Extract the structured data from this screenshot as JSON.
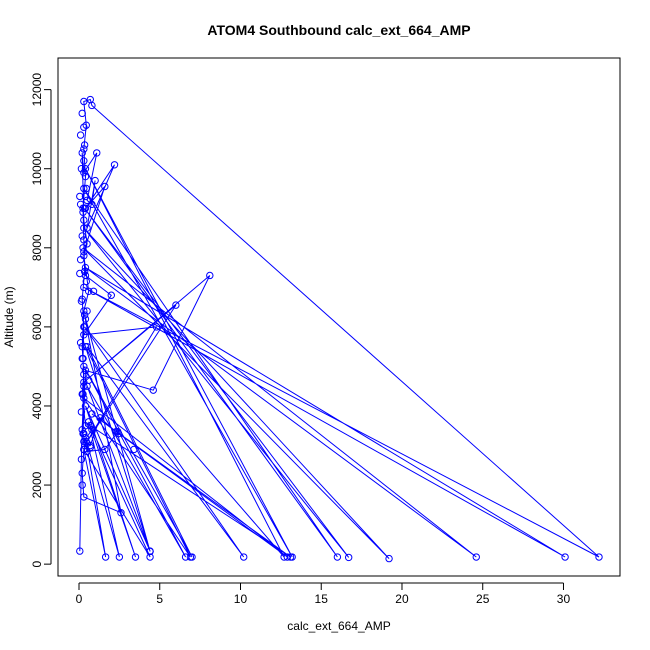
{
  "chart_data": {
    "type": "line",
    "title": "ATOM4 Southbound calc_ext_664_AMP",
    "xlabel": "calc_ext_664_AMP",
    "ylabel": "Altitude (m)",
    "xlim": [
      -1.3,
      33.5
    ],
    "ylim": [
      -300,
      12800
    ],
    "xticks": [
      0,
      5,
      10,
      15,
      20,
      25,
      30
    ],
    "yticks": [
      0,
      2000,
      4000,
      6000,
      8000,
      10000,
      12000
    ],
    "grid": false,
    "legend": "none",
    "series_color": "#0000ff",
    "marker": "open-circle",
    "series": [
      {
        "points": [
          [
            0.05,
            330
          ],
          [
            0.15,
            2650
          ],
          [
            0.2,
            3400
          ],
          [
            0.3,
            4500
          ],
          [
            0.25,
            5200
          ],
          [
            0.3,
            6000
          ],
          [
            0.2,
            6700
          ],
          [
            0.35,
            7400
          ],
          [
            0.3,
            8200
          ],
          [
            0.25,
            9000
          ],
          [
            0.4,
            9800
          ],
          [
            0.3,
            10500
          ],
          [
            0.45,
            11100
          ],
          [
            0.3,
            11700
          ],
          [
            0.7,
            11750
          ],
          [
            0.8,
            11600
          ],
          [
            32.2,
            180
          ],
          [
            0.3,
            7000
          ],
          [
            30.1,
            180
          ],
          [
            0.4,
            7500
          ],
          [
            24.6,
            180
          ],
          [
            0.25,
            8000
          ],
          [
            19.2,
            140
          ],
          [
            0.3,
            8500
          ],
          [
            16.7,
            170
          ],
          [
            0.35,
            9000
          ],
          [
            16.0,
            180
          ],
          [
            0.3,
            9500
          ],
          [
            13.2,
            180
          ],
          [
            0.4,
            10000
          ],
          [
            12.7,
            180
          ],
          [
            0.35,
            6000
          ],
          [
            10.2,
            180
          ],
          [
            0.5,
            5500
          ],
          [
            7.0,
            180
          ],
          [
            0.3,
            5000
          ],
          [
            6.6,
            180
          ],
          [
            0.5,
            4500
          ],
          [
            4.4,
            330
          ],
          [
            0.4,
            4000
          ],
          [
            3.5,
            180
          ],
          [
            0.6,
            3600
          ],
          [
            2.5,
            180
          ],
          [
            0.4,
            3200
          ],
          [
            1.65,
            180
          ],
          [
            0.3,
            2900
          ],
          [
            4.4,
            180
          ],
          [
            0.7,
            3500
          ],
          [
            13.1,
            180
          ],
          [
            0.8,
            3800
          ],
          [
            12.9,
            180
          ],
          [
            0.3,
            4200
          ],
          [
            6.9,
            180
          ],
          [
            0.4,
            5500
          ],
          [
            4.4,
            320
          ],
          [
            0.35,
            6300
          ],
          [
            2.6,
            1300
          ],
          [
            0.3,
            1700
          ],
          [
            0.2,
            2300
          ],
          [
            0.3,
            2900
          ],
          [
            0.45,
            3100
          ],
          [
            0.7,
            3000
          ],
          [
            1.3,
            3700
          ],
          [
            2.3,
            3350
          ],
          [
            2.4,
            3350
          ],
          [
            1.6,
            2900
          ],
          [
            0.5,
            2850
          ],
          [
            0.25,
            3300
          ],
          [
            0.4,
            4900
          ],
          [
            4.6,
            4400
          ],
          [
            8.1,
            7300
          ],
          [
            0.3,
            4600
          ],
          [
            6.0,
            6550
          ],
          [
            0.35,
            3000
          ],
          [
            4.8,
            6000
          ],
          [
            0.3,
            5800
          ],
          [
            2.0,
            6800
          ],
          [
            0.4,
            7300
          ],
          [
            0.3,
            7900
          ],
          [
            1.6,
            9550
          ],
          [
            0.4,
            9000
          ],
          [
            2.2,
            10100
          ],
          [
            0.5,
            8500
          ],
          [
            1.0,
            9700
          ],
          [
            0.8,
            9100
          ],
          [
            0.5,
            9200
          ],
          [
            1.1,
            10400
          ],
          [
            0.3,
            9900
          ],
          [
            0.2,
            10400
          ],
          [
            0.3,
            8700
          ],
          [
            0.5,
            8100
          ],
          [
            0.3,
            7800
          ],
          [
            0.6,
            6900
          ],
          [
            0.3,
            6400
          ],
          [
            0.2,
            5500
          ],
          [
            0.3,
            4800
          ],
          [
            0.2,
            4300
          ],
          [
            0.4,
            3500
          ],
          [
            0.8,
            3400
          ],
          [
            0.3,
            3100
          ]
        ]
      }
    ]
  },
  "extra_markers": [
    [
      0.1,
      10850
    ],
    [
      0.2,
      11400
    ],
    [
      0.3,
      11050
    ],
    [
      0.35,
      10600
    ],
    [
      0.15,
      10000
    ],
    [
      0.05,
      9300
    ],
    [
      0.1,
      9100
    ],
    [
      0.45,
      9500
    ],
    [
      0.2,
      8300
    ],
    [
      0.1,
      7700
    ],
    [
      0.05,
      7350
    ],
    [
      0.15,
      6650
    ],
    [
      0.4,
      6200
    ],
    [
      0.1,
      5600
    ],
    [
      0.25,
      4300
    ],
    [
      0.6,
      4650
    ],
    [
      0.15,
      3850
    ],
    [
      0.3,
      3300
    ],
    [
      0.7,
      2950
    ],
    [
      2.45,
      3300
    ],
    [
      3.4,
      2900
    ],
    [
      0.2,
      2000
    ],
    [
      0.5,
      3050
    ],
    [
      0.2,
      5200
    ],
    [
      0.45,
      7150
    ],
    [
      0.25,
      8900
    ],
    [
      0.4,
      9300
    ],
    [
      0.5,
      6400
    ],
    [
      0.9,
      6900
    ],
    [
      0.3,
      10200
    ]
  ]
}
